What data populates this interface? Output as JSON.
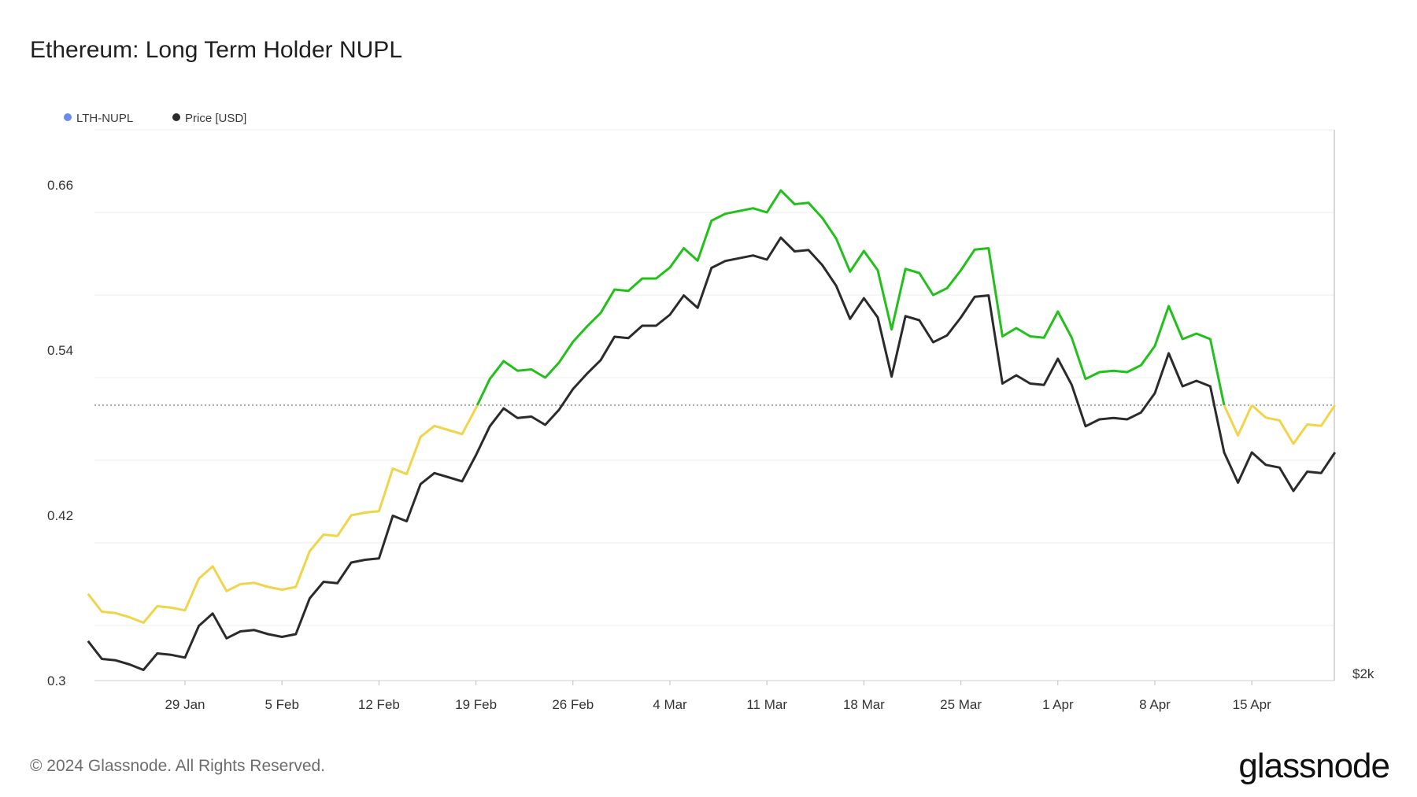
{
  "chart_data": {
    "type": "line",
    "title": "Ethereum: Long Term Holder NUPL",
    "legend": {
      "position": "top-left",
      "items": [
        {
          "label": "LTH-NUPL",
          "color": "#6b8cef"
        },
        {
          "label": "Price [USD]",
          "color": "#2b2b2b"
        }
      ]
    },
    "x_ticks": [
      "29 Jan",
      "5 Feb",
      "12 Feb",
      "19 Feb",
      "26 Feb",
      "4 Mar",
      "11 Mar",
      "18 Mar",
      "25 Mar",
      "1 Apr",
      "8 Apr",
      "15 Apr"
    ],
    "y_left_ticks": [
      "0.3",
      "0.42",
      "0.54",
      "0.66"
    ],
    "y_left_range": [
      0.3,
      0.7
    ],
    "y_right_ticks": [
      "$2k"
    ],
    "threshold_line": 0.5,
    "grid": true,
    "colors": {
      "above_threshold": "#22c01a",
      "below_threshold": "#f0d54a",
      "price": "#2b2b2b",
      "threshold": "#555555"
    },
    "series": [
      {
        "name": "LTH-NUPL",
        "x_start": "2024-01-22",
        "x_step_days": 1,
        "values": [
          0.363,
          0.35,
          0.349,
          0.346,
          0.342,
          0.354,
          0.353,
          0.351,
          0.374,
          0.383,
          0.365,
          0.37,
          0.371,
          0.368,
          0.366,
          0.368,
          0.394,
          0.406,
          0.405,
          0.42,
          0.422,
          0.423,
          0.454,
          0.45,
          0.477,
          0.485,
          0.482,
          0.479,
          0.498,
          0.519,
          0.532,
          0.525,
          0.526,
          0.52,
          0.531,
          0.546,
          0.557,
          0.567,
          0.584,
          0.583,
          0.592,
          0.592,
          0.6,
          0.614,
          0.605,
          0.634,
          0.639,
          0.641,
          0.643,
          0.64,
          0.656,
          0.646,
          0.647,
          0.636,
          0.621,
          0.597,
          0.612,
          0.598,
          0.555,
          0.599,
          0.596,
          0.58,
          0.585,
          0.598,
          0.613,
          0.614,
          0.55,
          0.556,
          0.55,
          0.549,
          0.568,
          0.549,
          0.519,
          0.524,
          0.525,
          0.524,
          0.529,
          0.543,
          0.572,
          0.548,
          0.552,
          0.548,
          0.5,
          0.478,
          0.5,
          0.491,
          0.489,
          0.472,
          0.486,
          0.485,
          0.5
        ]
      },
      {
        "name": "Price [USD]",
        "axis": "right",
        "x_start": "2024-01-22",
        "x_step_days": 1
      }
    ]
  },
  "footer": {
    "copyright": "© 2024 Glassnode. All Rights Reserved.",
    "brand": "glassnode"
  }
}
